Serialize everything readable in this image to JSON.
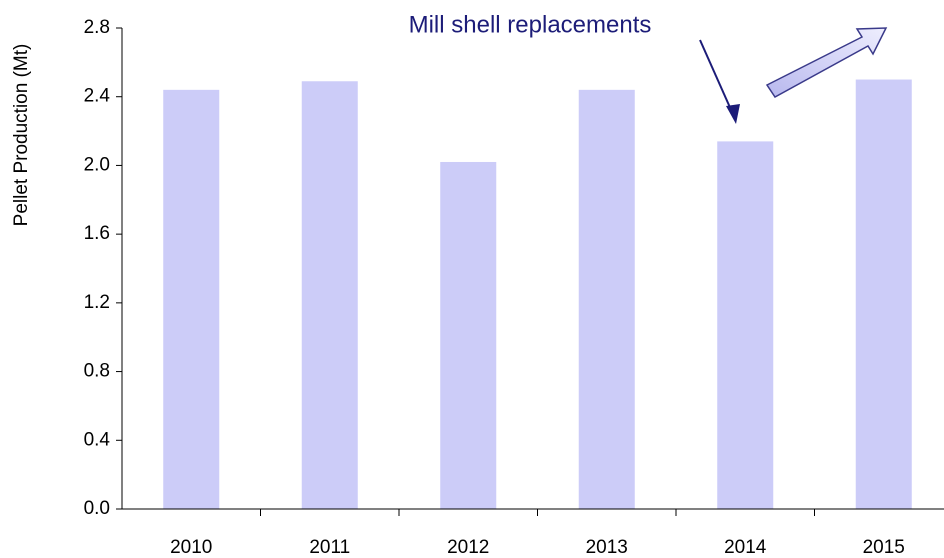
{
  "chart_data": {
    "type": "bar",
    "ylabel": "Pellet Production (Mt)",
    "annotation": "Mill shell replacements",
    "categories": [
      "2010",
      "2011",
      "2012",
      "2013",
      "2014",
      "2015"
    ],
    "values": [
      2.44,
      2.49,
      2.02,
      2.44,
      2.14,
      2.5
    ],
    "color": "#ccccf8",
    "ylim": [
      0,
      2.8
    ],
    "yticks": [
      {
        "value": 0,
        "label": "0.0"
      },
      0.4,
      0.8,
      1.2,
      1.6,
      {
        "value": 2,
        "label": "2.0"
      },
      2.4,
      2.8
    ],
    "grid": false
  }
}
